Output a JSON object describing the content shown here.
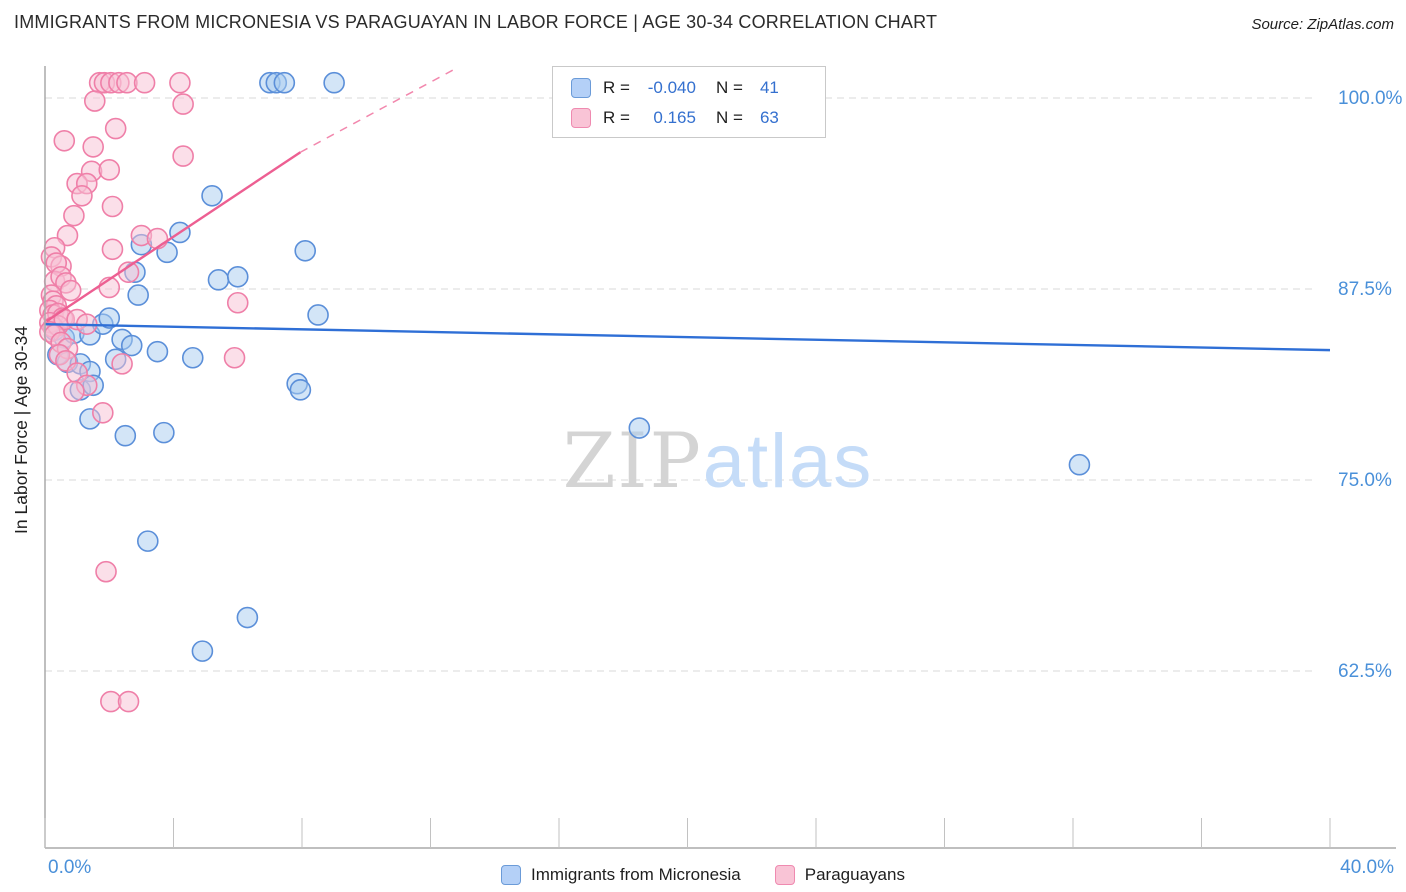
{
  "header": {
    "title": "IMMIGRANTS FROM MICRONESIA VS PARAGUAYAN IN LABOR FORCE | AGE 30-34 CORRELATION CHART",
    "source": "Source: ZipAtlas.com"
  },
  "legend_box": {
    "r_label": "R =",
    "n_label": "N =",
    "rows": [
      {
        "series": "Immigrants from Micronesia",
        "r": "-0.040",
        "n": "41"
      },
      {
        "series": "Paraguayans",
        "r": "0.165",
        "n": "63"
      }
    ]
  },
  "bottom_legend": {
    "items": [
      "Immigrants from Micronesia",
      "Paraguayans"
    ]
  },
  "chart_data": {
    "type": "scatter",
    "title": "IMMIGRANTS FROM MICRONESIA VS PARAGUAYAN IN LABOR FORCE | AGE 30-34 CORRELATION CHART",
    "xlabel": "",
    "ylabel": "In Labor Force | Age 30-34",
    "xlim": [
      0,
      40
    ],
    "x_ticks": [
      0,
      4,
      8,
      12,
      16,
      20,
      24,
      28,
      32,
      36,
      40
    ],
    "x_tick_labels": [
      {
        "text": "0.0%",
        "x": 0,
        "anchor": "start"
      },
      {
        "text": "40.0%",
        "x": 40,
        "anchor": "end"
      }
    ],
    "y_ticks": [
      100.0,
      87.5,
      75.0,
      62.5
    ],
    "y_tick_labels": [
      "100.0%",
      "87.5%",
      "75.0%",
      "62.5%"
    ],
    "grid": "horizontal-dashed",
    "legend_position": "top-center",
    "watermark": {
      "part1": "ZIP",
      "part2": "atlas"
    },
    "colors": {
      "axis_label_blue": "#4a90d9",
      "grid": "#d9d9d9",
      "axis_line": "#aaaaaa",
      "watermark_zip": "#d4d4d4",
      "watermark_atlas": "#c5dcf8",
      "micronesia_stroke": "#5b8fd9",
      "micronesia_fill": "#a8ccf0",
      "micronesia_trend": "#2f6fd6",
      "paraguayan_stroke": "#ef7fa8",
      "paraguayan_fill": "#f8c0d4",
      "paraguayan_trend": "#ed5f92"
    },
    "series": [
      {
        "name": "Immigrants from Micronesia",
        "r": -0.04,
        "n": 41,
        "trend": {
          "solid": [
            [
              0,
              85.2
            ],
            [
              40,
              83.5
            ]
          ]
        },
        "points": [
          [
            0.3,
            84.8
          ],
          [
            0.6,
            84.3
          ],
          [
            0.9,
            84.6
          ],
          [
            1.4,
            84.5
          ],
          [
            1.8,
            85.2
          ],
          [
            2.4,
            84.2
          ],
          [
            2.7,
            83.8
          ],
          [
            0.4,
            83.2
          ],
          [
            0.7,
            82.7
          ],
          [
            1.1,
            82.6
          ],
          [
            1.4,
            82.1
          ],
          [
            2.2,
            82.9
          ],
          [
            3.5,
            83.4
          ],
          [
            4.6,
            83.0
          ],
          [
            1.1,
            80.9
          ],
          [
            1.5,
            81.2
          ],
          [
            7.85,
            81.3
          ],
          [
            7.95,
            80.9
          ],
          [
            1.4,
            79.0
          ],
          [
            2.5,
            77.9
          ],
          [
            3.7,
            78.1
          ],
          [
            2.0,
            85.6
          ],
          [
            8.5,
            85.8
          ],
          [
            2.8,
            88.6
          ],
          [
            5.4,
            88.1
          ],
          [
            6.0,
            88.3
          ],
          [
            5.2,
            93.6
          ],
          [
            4.2,
            91.2
          ],
          [
            3.0,
            90.4
          ],
          [
            3.8,
            89.9
          ],
          [
            8.1,
            90.0
          ],
          [
            7.0,
            101
          ],
          [
            7.2,
            101
          ],
          [
            7.45,
            101
          ],
          [
            9.0,
            101
          ],
          [
            3.2,
            71.0
          ],
          [
            6.3,
            66.0
          ],
          [
            4.9,
            63.8
          ],
          [
            18.5,
            78.4
          ],
          [
            32.2,
            76.0
          ],
          [
            2.9,
            87.1
          ]
        ]
      },
      {
        "name": "Paraguayans",
        "r": 0.165,
        "n": 63,
        "trend": {
          "solid": [
            [
              0.05,
              85.4
            ],
            [
              7.95,
              96.45
            ]
          ],
          "dashed": [
            [
              7.95,
              96.45
            ],
            [
              12.85,
              102.0
            ]
          ]
        },
        "points": [
          [
            1.7,
            101
          ],
          [
            1.85,
            101
          ],
          [
            2.05,
            101
          ],
          [
            2.3,
            101
          ],
          [
            2.55,
            101
          ],
          [
            3.1,
            101
          ],
          [
            4.2,
            101
          ],
          [
            1.55,
            99.8
          ],
          [
            4.3,
            99.6
          ],
          [
            2.2,
            98.0
          ],
          [
            0.6,
            97.2
          ],
          [
            1.5,
            96.8
          ],
          [
            4.3,
            96.2
          ],
          [
            1.45,
            95.2
          ],
          [
            2.0,
            95.3
          ],
          [
            1.0,
            94.4
          ],
          [
            1.3,
            94.4
          ],
          [
            1.15,
            93.6
          ],
          [
            0.9,
            92.3
          ],
          [
            2.1,
            92.9
          ],
          [
            0.7,
            91.0
          ],
          [
            3.0,
            91.0
          ],
          [
            3.5,
            90.8
          ],
          [
            2.1,
            90.1
          ],
          [
            0.3,
            90.2
          ],
          [
            0.2,
            89.6
          ],
          [
            0.5,
            89.0
          ],
          [
            0.35,
            89.2
          ],
          [
            0.3,
            88.0
          ],
          [
            0.5,
            88.3
          ],
          [
            0.65,
            87.9
          ],
          [
            0.8,
            87.4
          ],
          [
            2.0,
            87.6
          ],
          [
            2.6,
            88.6
          ],
          [
            6.0,
            86.6
          ],
          [
            0.2,
            87.1
          ],
          [
            0.25,
            86.7
          ],
          [
            0.35,
            86.4
          ],
          [
            0.15,
            86.1
          ],
          [
            0.25,
            85.8
          ],
          [
            0.4,
            85.9
          ],
          [
            0.55,
            85.6
          ],
          [
            0.15,
            85.3
          ],
          [
            0.25,
            85.0
          ],
          [
            0.4,
            85.1
          ],
          [
            0.6,
            85.5
          ],
          [
            1.0,
            85.5
          ],
          [
            1.3,
            85.2
          ],
          [
            0.15,
            84.7
          ],
          [
            0.3,
            84.5
          ],
          [
            0.5,
            84.0
          ],
          [
            0.7,
            83.6
          ],
          [
            0.45,
            83.2
          ],
          [
            0.65,
            82.8
          ],
          [
            1.0,
            82.0
          ],
          [
            1.3,
            81.2
          ],
          [
            0.9,
            80.8
          ],
          [
            2.4,
            82.6
          ],
          [
            5.9,
            83.0
          ],
          [
            1.8,
            79.4
          ],
          [
            1.9,
            69.0
          ],
          [
            2.05,
            60.5
          ],
          [
            2.6,
            60.5
          ]
        ]
      }
    ]
  }
}
